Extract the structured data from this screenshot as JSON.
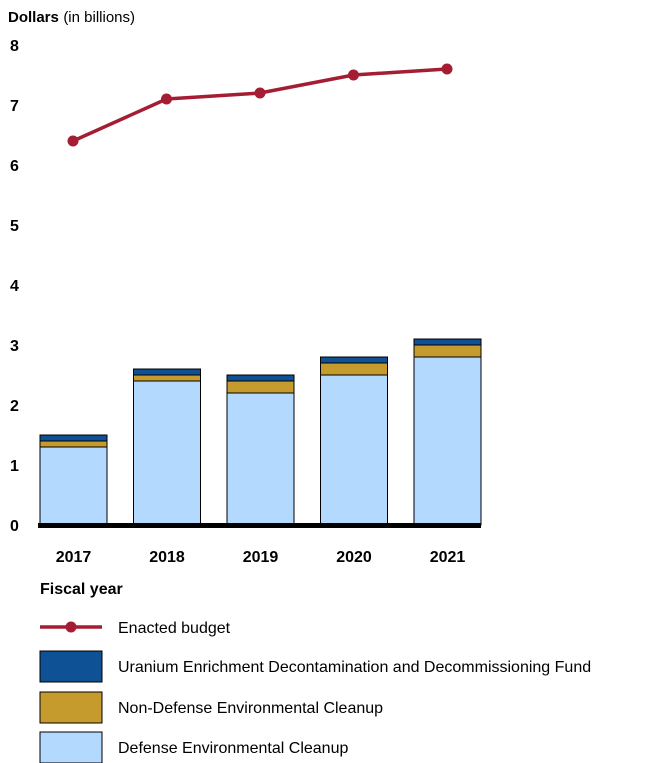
{
  "chart_data": {
    "type": "bar",
    "stacked": true,
    "ylabel": "Dollars",
    "ylabel_unit": "(in billions)",
    "xlabel": "Fiscal year",
    "ylim": [
      0,
      8
    ],
    "yticks": [
      "0",
      "1",
      "2",
      "3",
      "4",
      "5",
      "6",
      "7",
      "8"
    ],
    "categories": [
      "2017",
      "2018",
      "2019",
      "2020",
      "2021"
    ],
    "series": [
      {
        "name": "Defense Environmental Cleanup",
        "kind": "bar",
        "color": "#b3d9ff",
        "values": [
          1.3,
          2.4,
          2.2,
          2.5,
          2.8
        ]
      },
      {
        "name": "Non-Defense Environmental Cleanup",
        "kind": "bar",
        "color": "#c59b2d",
        "values": [
          0.1,
          0.1,
          0.2,
          0.2,
          0.2
        ]
      },
      {
        "name": "Uranium Enrichment Decontamination and Decommissioning Fund",
        "kind": "bar",
        "color": "#0e5195",
        "values": [
          0.1,
          0.1,
          0.1,
          0.1,
          0.1
        ]
      },
      {
        "name": "Enacted budget",
        "kind": "line",
        "color": "#a51d33",
        "values": [
          6.4,
          7.1,
          7.2,
          7.5,
          7.6
        ]
      }
    ],
    "legend_placement": "bottom",
    "grid": false
  }
}
